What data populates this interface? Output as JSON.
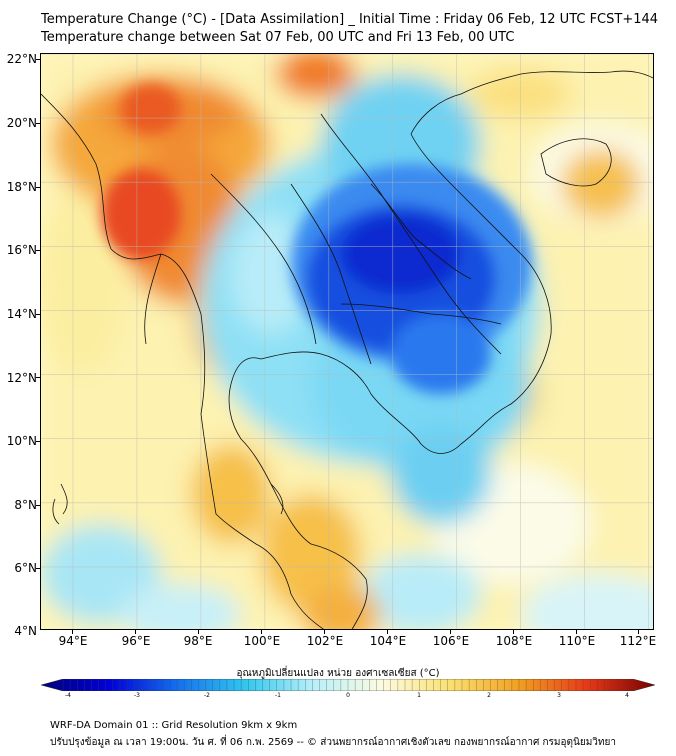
{
  "header": {
    "title_line1": "Temperature Change (°C) - [Data Assimilation] _ Initial Time : Friday 06 Feb, 12 UTC FCST+144",
    "title_line2": "Temperature change between Sat 07 Feb, 00 UTC and Fri 13 Feb, 00 UTC"
  },
  "map": {
    "lat_labels": [
      "22°N",
      "20°N",
      "18°N",
      "16°N",
      "14°N",
      "12°N",
      "10°N",
      "8°N",
      "6°N",
      "4°N"
    ],
    "lon_labels": [
      "94°E",
      "96°E",
      "98°E",
      "100°E",
      "102°E",
      "104°E",
      "106°E",
      "108°E",
      "110°E",
      "112°E"
    ],
    "lat_range": [
      4,
      22
    ],
    "lon_range": [
      93,
      112.2
    ],
    "grid": true,
    "colors": {
      "cold": "#0015c8",
      "cool": "#33c8f0",
      "neutral": "#fdfbe0",
      "warm": "#f3b625",
      "hot": "#e84020"
    }
  },
  "colorbar": {
    "title": "อุณหภูมิเปลี่ยนแปลง หน่วย องศาเซลเซียส (°C)",
    "tick_labels": [
      "-4",
      "-3",
      "-2",
      "-1",
      "0",
      "1",
      "2",
      "3",
      "4"
    ],
    "range": [
      -4,
      4
    ],
    "colors": [
      "#00007a",
      "#0000d8",
      "#1470f0",
      "#30c8f0",
      "#b8f0f8",
      "#fdfbe0",
      "#fbe070",
      "#f2a020",
      "#e83818",
      "#7a0000"
    ]
  },
  "footer": {
    "line1": "WRF-DA Domain 01 :: Grid Resolution 9km x 9km",
    "line2": "ปรับปรุงข้อมูล ณ เวลา 19:00น. วัน ศ. ที่ 06 ก.พ. 2569 -- © ส่วนพยากรณ์อากาศเชิงตัวเลข กองพยากรณ์อากาศ กรมอุตุนิยมวิทยา"
  }
}
